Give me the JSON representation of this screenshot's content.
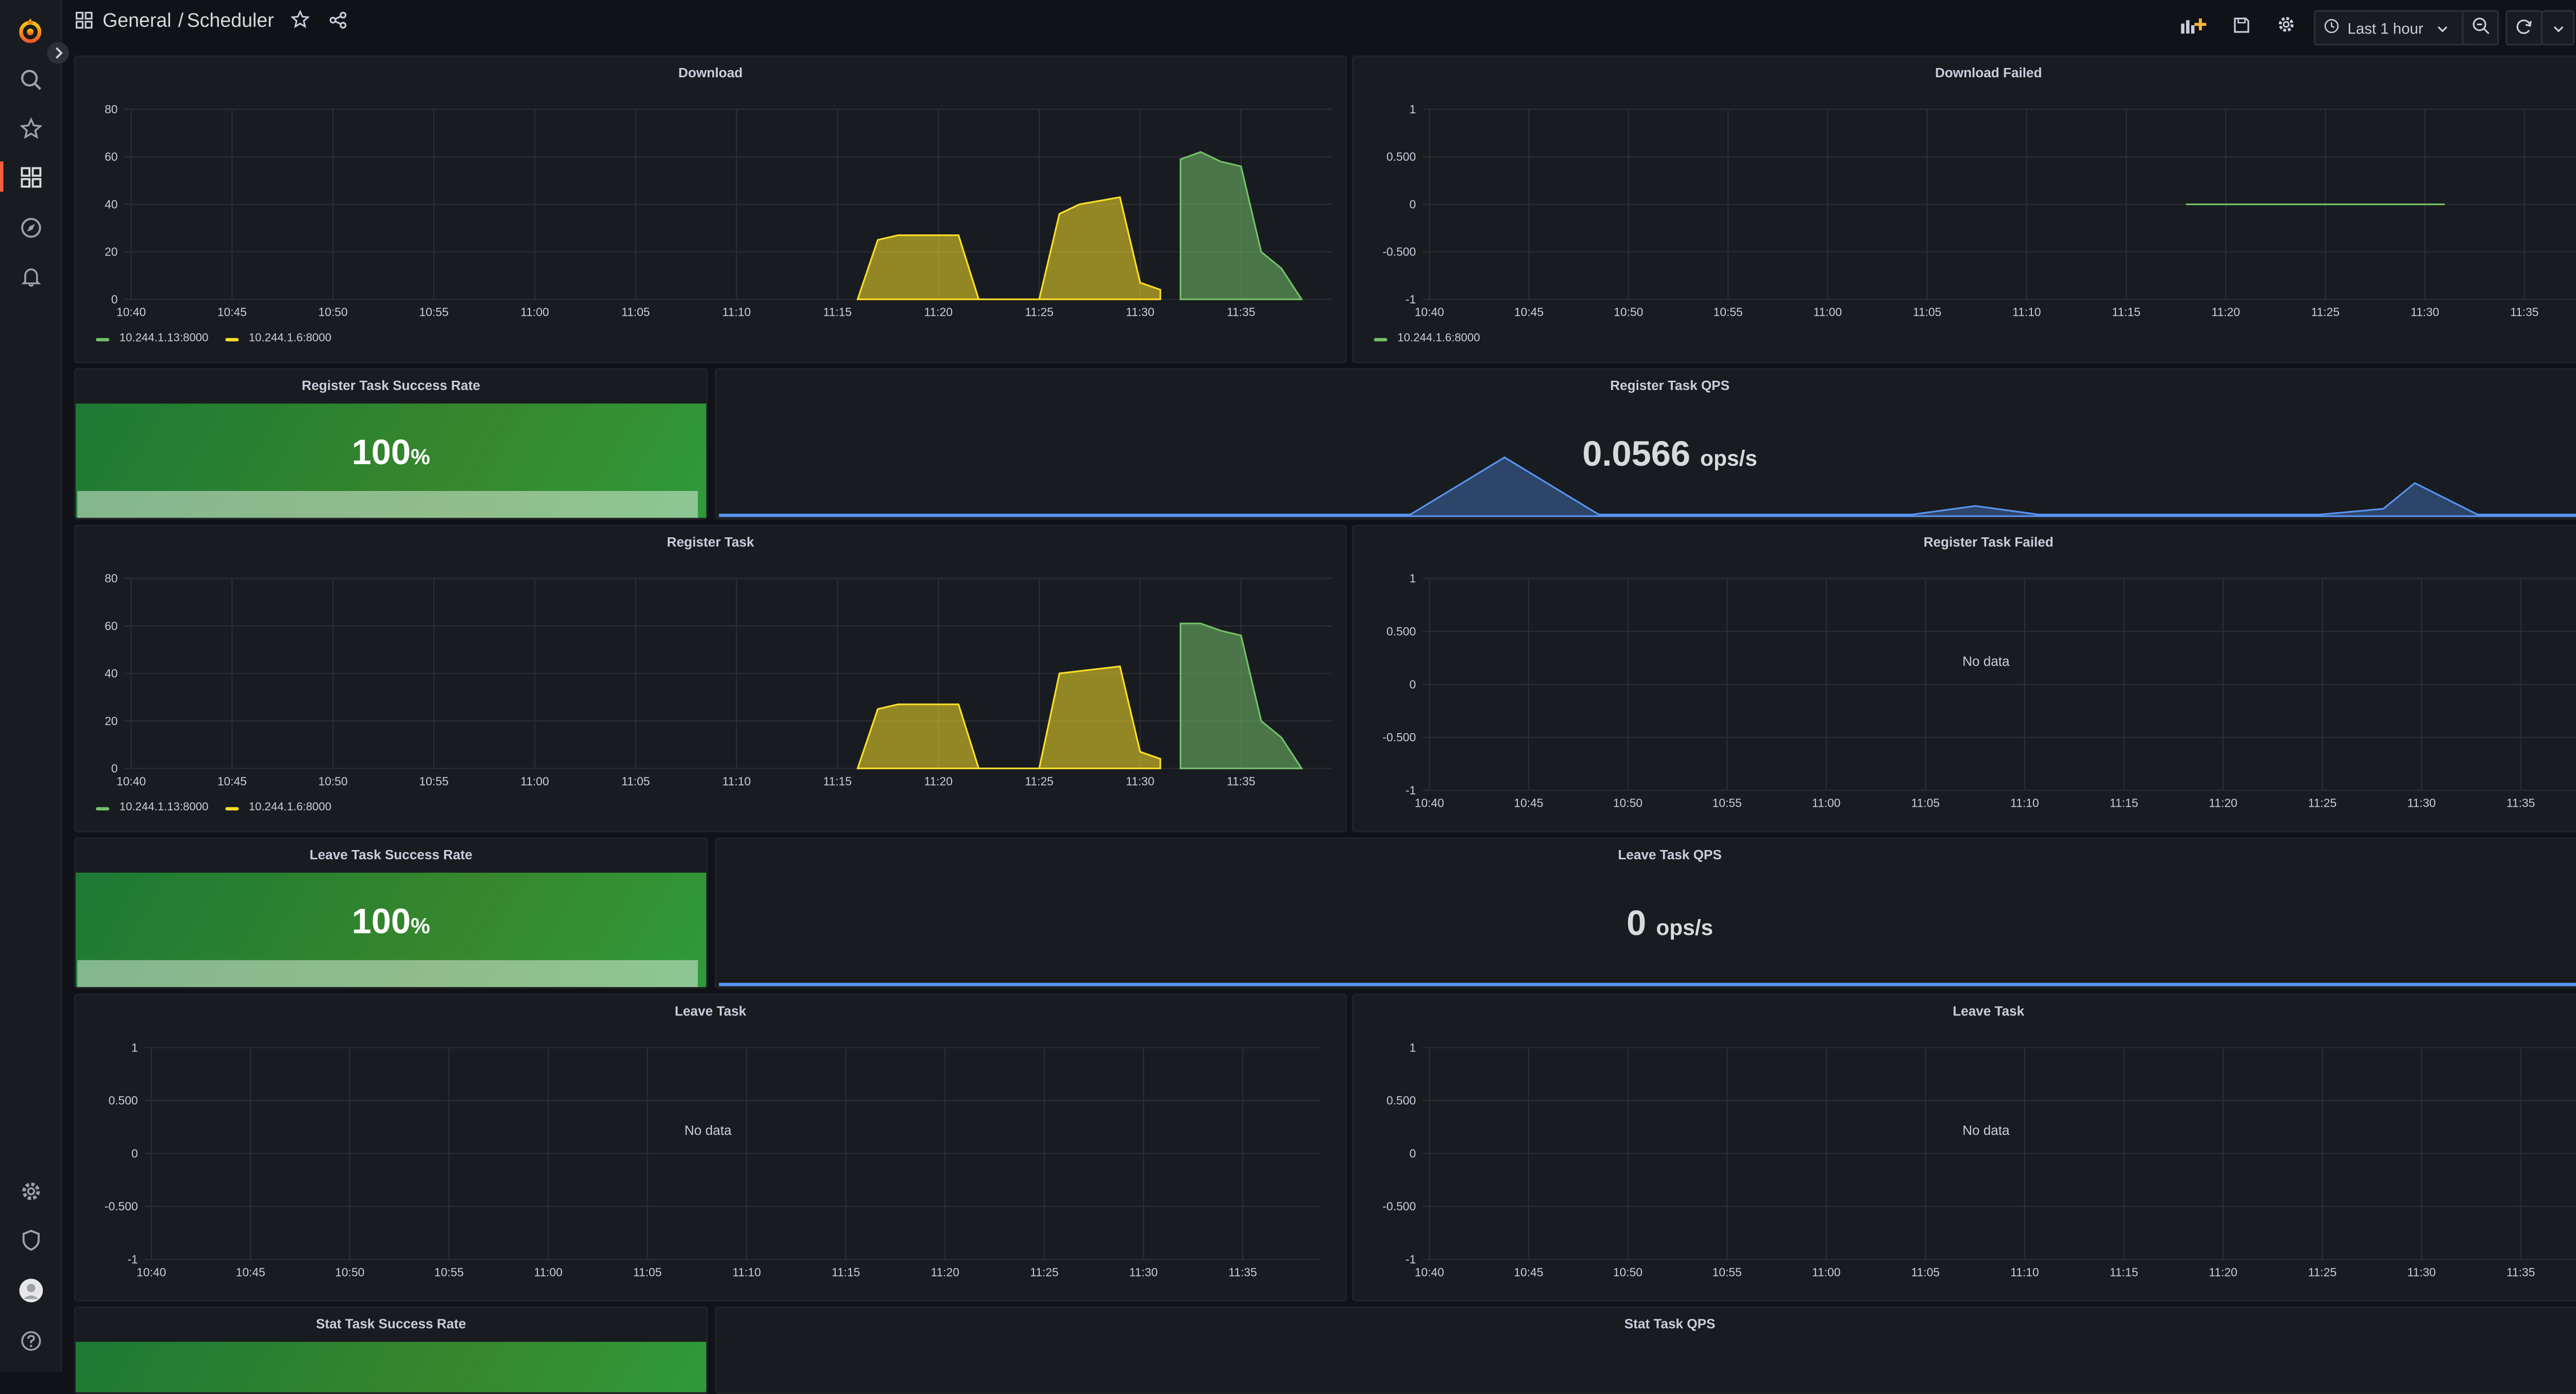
{
  "breadcrumb": {
    "folder": "General",
    "separator": "/",
    "dashboard": "Scheduler"
  },
  "toolbar": {
    "time_range": "Last 1 hour"
  },
  "colors": {
    "green": "#73bf69",
    "yellow": "#fade2a",
    "blue": "#5794f2",
    "accent": "#f55f3e",
    "stat_green": "#37872d"
  },
  "icons": {
    "sidebar": [
      "grafana-logo",
      "search-icon",
      "star-icon",
      "dashboards-icon",
      "explore-icon",
      "alert-bell-icon",
      "gear-icon",
      "shield-icon",
      "avatar",
      "help-icon"
    ],
    "header": [
      "dashboard-grid-icon",
      "star-icon",
      "share-icon"
    ],
    "toolbar": [
      "add-panel-icon",
      "save-icon",
      "gear-icon",
      "clock-icon",
      "chevron-down-icon",
      "zoom-out-icon",
      "refresh-icon",
      "chevron-down-icon",
      "tv-mode-icon"
    ]
  },
  "panels": {
    "download": {
      "title": "Download"
    },
    "download_failed": {
      "title": "Download Failed"
    },
    "register_rate": {
      "title": "Register Task Success Rate",
      "value": "100",
      "unit": "%"
    },
    "register_qps": {
      "title": "Register Task QPS",
      "value": "0.0566",
      "unit": "ops/s"
    },
    "register_task": {
      "title": "Register Task"
    },
    "register_failed": {
      "title": "Register Task Failed",
      "no_data": "No data"
    },
    "leave_rate": {
      "title": "Leave Task Success Rate",
      "value": "100",
      "unit": "%"
    },
    "leave_qps": {
      "title": "Leave Task QPS",
      "value": "0",
      "unit": "ops/s"
    },
    "leave_task_1": {
      "title": "Leave Task",
      "no_data": "No data"
    },
    "leave_task_2": {
      "title": "Leave Task",
      "no_data": "No data"
    },
    "stat_rate": {
      "title": "Stat Task Success Rate"
    },
    "stat_qps": {
      "title": "Stat Task QPS"
    }
  },
  "chart_data": [
    {
      "panel": "Download",
      "type": "area",
      "x": [
        "10:40",
        "10:45",
        "10:50",
        "10:55",
        "11:00",
        "11:05",
        "11:10",
        "11:15",
        "11:20",
        "11:25",
        "11:30",
        "11:35"
      ],
      "yticks": [
        "80",
        "60",
        "40",
        "20",
        "0"
      ],
      "ylim": [
        0,
        80
      ],
      "series": [
        {
          "name": "10.244.1.13:8000",
          "color": "#73bf69",
          "points": [
            [
              "11:32",
              0
            ],
            [
              "11:32",
              59
            ],
            [
              "11:33",
              62
            ],
            [
              "11:34",
              58
            ],
            [
              "11:35",
              56
            ],
            [
              "11:36",
              20
            ],
            [
              "11:37",
              13
            ],
            [
              "11:38",
              0
            ]
          ]
        },
        {
          "name": "10.244.1.6:8000",
          "color": "#fade2a",
          "points": [
            [
              "11:16",
              0
            ],
            [
              "11:17",
              25
            ],
            [
              "11:18",
              27
            ],
            [
              "11:21",
              27
            ],
            [
              "11:22",
              0
            ],
            [
              "11:25",
              0
            ],
            [
              "11:26",
              36
            ],
            [
              "11:27",
              40
            ],
            [
              "11:29",
              43
            ],
            [
              "11:30",
              7
            ],
            [
              "11:31",
              4
            ],
            [
              "11:31",
              0
            ]
          ]
        }
      ]
    },
    {
      "panel": "Download Failed",
      "type": "line",
      "x": [
        "10:40",
        "10:45",
        "10:50",
        "10:55",
        "11:00",
        "11:05",
        "11:10",
        "11:15",
        "11:20",
        "11:25",
        "11:30",
        "11:35"
      ],
      "yticks": [
        "1",
        "0.500",
        "0",
        "-0.500",
        "-1"
      ],
      "ylim": [
        -1,
        1
      ],
      "series": [
        {
          "name": "10.244.1.6:8000",
          "color": "#73bf69",
          "points": [
            [
              "11:18",
              0
            ],
            [
              "11:31",
              0
            ]
          ]
        }
      ]
    },
    {
      "panel": "Register Task QPS",
      "type": "area",
      "ylim": [
        0,
        1
      ],
      "series": [
        {
          "color": "#5794f2",
          "points": [
            [
              "10:40",
              0
            ],
            [
              "11:02",
              0
            ],
            [
              "11:05",
              1
            ],
            [
              "11:08",
              0
            ],
            [
              "11:18",
              0
            ],
            [
              "11:20",
              0.15
            ],
            [
              "11:22",
              0
            ],
            [
              "11:31",
              0
            ],
            [
              "11:33",
              0.1
            ],
            [
              "11:34",
              0.55
            ],
            [
              "11:36",
              0
            ],
            [
              "11:40",
              0
            ]
          ]
        }
      ]
    },
    {
      "panel": "Register Task",
      "type": "area",
      "x": [
        "10:40",
        "10:45",
        "10:50",
        "10:55",
        "11:00",
        "11:05",
        "11:10",
        "11:15",
        "11:20",
        "11:25",
        "11:30",
        "11:35"
      ],
      "yticks": [
        "80",
        "60",
        "40",
        "20",
        "0"
      ],
      "ylim": [
        0,
        80
      ],
      "series": [
        {
          "name": "10.244.1.13:8000",
          "color": "#73bf69",
          "points": [
            [
              "11:32",
              0
            ],
            [
              "11:32",
              61
            ],
            [
              "11:33",
              61
            ],
            [
              "11:34",
              58
            ],
            [
              "11:35",
              56
            ],
            [
              "11:36",
              20
            ],
            [
              "11:37",
              13
            ],
            [
              "11:38",
              0
            ]
          ]
        },
        {
          "name": "10.244.1.6:8000",
          "color": "#fade2a",
          "points": [
            [
              "11:16",
              0
            ],
            [
              "11:17",
              25
            ],
            [
              "11:18",
              27
            ],
            [
              "11:21",
              27
            ],
            [
              "11:22",
              0
            ],
            [
              "11:25",
              0
            ],
            [
              "11:26",
              40
            ],
            [
              "11:27",
              41
            ],
            [
              "11:29",
              43
            ],
            [
              "11:30",
              7
            ],
            [
              "11:31",
              4
            ],
            [
              "11:31",
              0
            ]
          ]
        }
      ]
    },
    {
      "panel": "Register Task Failed",
      "type": "line",
      "x": [
        "10:40",
        "10:45",
        "10:50",
        "10:55",
        "11:00",
        "11:05",
        "11:10",
        "11:15",
        "11:20",
        "11:25",
        "11:30",
        "11:35"
      ],
      "yticks": [
        "1",
        "0.500",
        "0",
        "-0.500",
        "-1"
      ],
      "ylim": [
        -1,
        1
      ],
      "series": []
    },
    {
      "panel": "Leave Task QPS",
      "type": "line",
      "series": [
        {
          "color": "#5794f2",
          "points": [
            [
              "10:40",
              0
            ],
            [
              "11:40",
              0
            ]
          ]
        }
      ]
    },
    {
      "panel": "Leave Task",
      "type": "line",
      "x": [
        "10:40",
        "10:45",
        "10:50",
        "10:55",
        "11:00",
        "11:05",
        "11:10",
        "11:15",
        "11:20",
        "11:25",
        "11:30",
        "11:35"
      ],
      "yticks": [
        "1",
        "0.500",
        "0",
        "-0.500",
        "-1"
      ],
      "ylim": [
        -1,
        1
      ],
      "series": []
    },
    {
      "panel": "Leave Task",
      "type": "line",
      "x": [
        "10:40",
        "10:45",
        "10:50",
        "10:55",
        "11:00",
        "11:05",
        "11:10",
        "11:15",
        "11:20",
        "11:25",
        "11:30",
        "11:35"
      ],
      "yticks": [
        "1",
        "0.500",
        "0",
        "-0.500",
        "-1"
      ],
      "ylim": [
        -1,
        1
      ],
      "series": []
    }
  ]
}
